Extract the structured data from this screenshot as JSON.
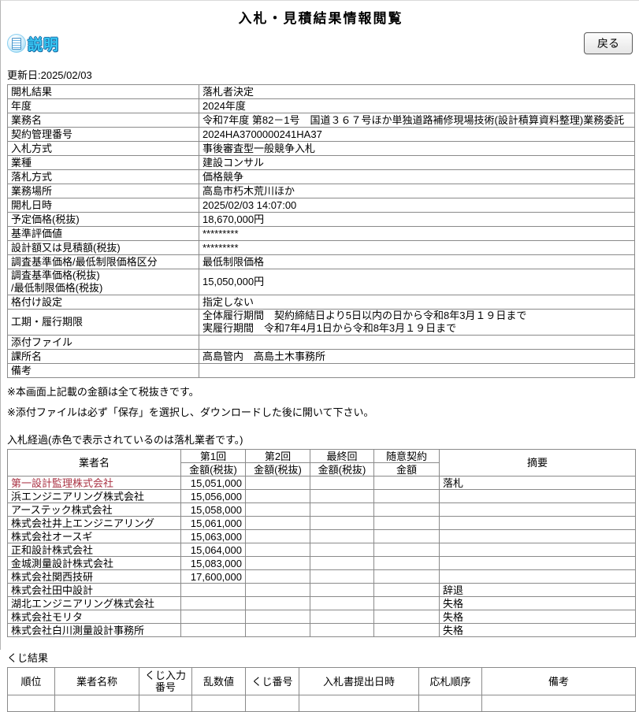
{
  "page": {
    "title": "入札・見積結果情報閲覧",
    "updated": "更新日:2025/02/03"
  },
  "toolbar": {
    "help_label": "説明",
    "back_label": "戻る"
  },
  "details": {
    "rows": [
      {
        "label": "開札結果",
        "value": "落札者決定"
      },
      {
        "label": "年度",
        "value": "2024年度"
      },
      {
        "label": "業務名",
        "value": "令和7年度 第82－1号　国道３６７号ほか単独道路補修現場技術(設計積算資料整理)業務委託"
      },
      {
        "label": "契約管理番号",
        "value": "2024HA3700000241HA37"
      },
      {
        "label": "入札方式",
        "value": "事後審査型一般競争入札"
      },
      {
        "label": "業種",
        "value": "建設コンサル"
      },
      {
        "label": "落札方式",
        "value": "価格競争"
      },
      {
        "label": "業務場所",
        "value": "高島市朽木荒川ほか"
      },
      {
        "label": "開札日時",
        "value": "2025/02/03 14:07:00"
      },
      {
        "label": "予定価格(税抜)",
        "value": "18,670,000円"
      },
      {
        "label": "基準評価値",
        "value": "*********"
      },
      {
        "label": "設計額又は見積額(税抜)",
        "value": "*********"
      },
      {
        "label": "調査基準価格/最低制限価格区分",
        "value": "最低制限価格"
      },
      {
        "label": "調査基準価格(税抜)\n/最低制限価格(税抜)",
        "value": "15,050,000円"
      },
      {
        "label": "格付け設定",
        "value": "指定しない"
      },
      {
        "label": "工期・履行期限",
        "value": "全体履行期間　契約締結日より5日以内の日から令和8年3月１９日まで\n実履行期間　令和7年4月1日から令和8年3月１９日まで"
      },
      {
        "label": "添付ファイル",
        "value": ""
      },
      {
        "label": "課所名",
        "value": "高島管内　高島土木事務所"
      },
      {
        "label": "備考",
        "value": ""
      }
    ]
  },
  "notes": [
    "※本画面上記載の金額は全て税抜きです。",
    "※添付ファイルは必ず「保存」を選択し、ダウンロードした後に開いて下さい。"
  ],
  "bid_table": {
    "caption": "入札経過(赤色で表示されているのは落札業者です。)",
    "headers": {
      "vendor": "業者名",
      "round1": "第1回",
      "round2": "第2回",
      "final": "最終回",
      "discretionary": "随意契約",
      "amount_taxless": "金額(税抜)",
      "amount": "金額",
      "summary": "摘要"
    },
    "rows": [
      {
        "name": "第一設計監理株式会社",
        "winner": true,
        "round1": "15,051,000",
        "round2": "",
        "final": "",
        "discretionary": "",
        "note": "落札"
      },
      {
        "name": "浜エンジニアリング株式会社",
        "winner": false,
        "round1": "15,056,000",
        "round2": "",
        "final": "",
        "discretionary": "",
        "note": ""
      },
      {
        "name": "アーステック株式会社",
        "winner": false,
        "round1": "15,058,000",
        "round2": "",
        "final": "",
        "discretionary": "",
        "note": ""
      },
      {
        "name": "株式会社井上エンジニアリング",
        "winner": false,
        "round1": "15,061,000",
        "round2": "",
        "final": "",
        "discretionary": "",
        "note": ""
      },
      {
        "name": "株式会社オースギ",
        "winner": false,
        "round1": "15,063,000",
        "round2": "",
        "final": "",
        "discretionary": "",
        "note": ""
      },
      {
        "name": "正和設計株式会社",
        "winner": false,
        "round1": "15,064,000",
        "round2": "",
        "final": "",
        "discretionary": "",
        "note": ""
      },
      {
        "name": "金城測量設計株式会社",
        "winner": false,
        "round1": "15,083,000",
        "round2": "",
        "final": "",
        "discretionary": "",
        "note": ""
      },
      {
        "name": "株式会社関西技研",
        "winner": false,
        "round1": "17,600,000",
        "round2": "",
        "final": "",
        "discretionary": "",
        "note": ""
      },
      {
        "name": "株式会社田中設計",
        "winner": false,
        "round1": "",
        "round2": "",
        "final": "",
        "discretionary": "",
        "note": "辞退"
      },
      {
        "name": "湖北エンジニアリング株式会社",
        "winner": false,
        "round1": "",
        "round2": "",
        "final": "",
        "discretionary": "",
        "note": "失格"
      },
      {
        "name": "株式会社モリタ",
        "winner": false,
        "round1": "",
        "round2": "",
        "final": "",
        "discretionary": "",
        "note": "失格"
      },
      {
        "name": "株式会社白川測量設計事務所",
        "winner": false,
        "round1": "",
        "round2": "",
        "final": "",
        "discretionary": "",
        "note": "失格"
      }
    ]
  },
  "lottery": {
    "caption": "くじ結果",
    "headers": [
      "順位",
      "業者名称",
      "くじ入力番号",
      "乱数値",
      "くじ番号",
      "入札書提出日時",
      "応札順序",
      "備考"
    ]
  },
  "colors": {
    "winner_text": "#aa3344",
    "help_text": "#38c6f2",
    "table_border": "#8a8a8a"
  }
}
